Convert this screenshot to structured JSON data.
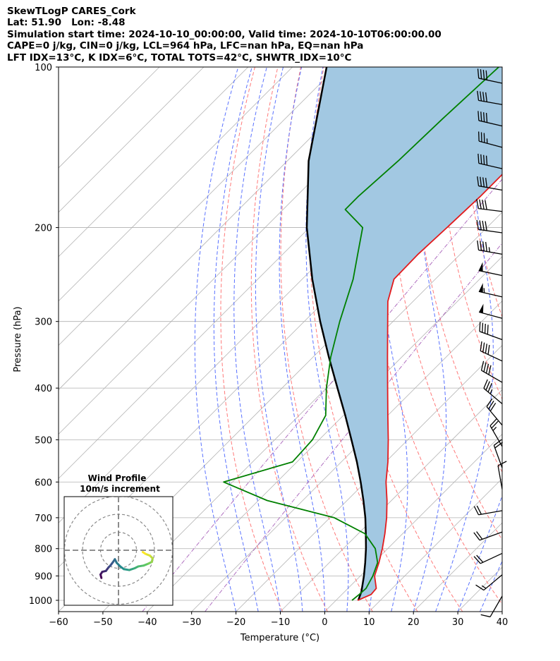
{
  "header": {
    "line1": "SkewTLogP CARES_Cork",
    "line2": "Lat: 51.90   Lon: -8.48",
    "line3": "Simulation start time: 2024-10-10_00:00:00, Valid time: 2024-10-10T06:00:00.00",
    "line4": "CAPE=0 j/kg, CIN=0 j/kg, LCL=964 hPa, LFC=nan hPa, EQ=nan hPa",
    "line5": "LFT IDX=13°C, K IDX=6°C, TOTAL TOTS=42°C, SHWTR_IDX=10°C"
  },
  "chart_data": {
    "type": "line",
    "xlabel": "Temperature (°C)",
    "ylabel": "Pressure (hPa)",
    "xlim": [
      -60,
      40
    ],
    "ylim": [
      1050,
      100
    ],
    "y_scale": "log",
    "skew": "45deg",
    "xticks": [
      "−60",
      "−50",
      "−40",
      "−30",
      "−20",
      "−10",
      "0",
      "10",
      "20",
      "30",
      "40"
    ],
    "yticks": [
      "100",
      "200",
      "300",
      "400",
      "500",
      "600",
      "700",
      "800",
      "900",
      "1000"
    ],
    "grid": true,
    "series": [
      {
        "role": "temperature",
        "color": "#e31a1c",
        "points": [
          [
            1000,
            4.9
          ],
          [
            975,
            6.6
          ],
          [
            950,
            6.4
          ],
          [
            900,
            3.2
          ],
          [
            850,
            1.2
          ],
          [
            800,
            -1.2
          ],
          [
            750,
            -4.0
          ],
          [
            700,
            -7.2
          ],
          [
            650,
            -11.0
          ],
          [
            600,
            -15.4
          ],
          [
            550,
            -19.5
          ],
          [
            500,
            -24.4
          ],
          [
            450,
            -30.0
          ],
          [
            400,
            -36.2
          ],
          [
            350,
            -43.2
          ],
          [
            300,
            -51.2
          ],
          [
            275,
            -55.7
          ],
          [
            250,
            -59.3
          ],
          [
            225,
            -59.5
          ],
          [
            200,
            -59.0
          ],
          [
            175,
            -58.5
          ],
          [
            150,
            -58.5
          ],
          [
            125,
            -58.5
          ],
          [
            100,
            -58.5
          ]
        ]
      },
      {
        "role": "dewpoint",
        "color": "#008000",
        "points": [
          [
            1000,
            3.6
          ],
          [
            975,
            3.9
          ],
          [
            950,
            4.1
          ],
          [
            900,
            2.8
          ],
          [
            850,
            0.9
          ],
          [
            800,
            -2.8
          ],
          [
            750,
            -8.5
          ],
          [
            700,
            -19.0
          ],
          [
            650,
            -38.0
          ],
          [
            600,
            -52.0
          ],
          [
            550,
            -41.0
          ],
          [
            500,
            -41.5
          ],
          [
            450,
            -44.0
          ],
          [
            400,
            -50.0
          ],
          [
            350,
            -56.0
          ],
          [
            300,
            -62.0
          ],
          [
            250,
            -68.5
          ],
          [
            225,
            -73.0
          ],
          [
            200,
            -78.0
          ],
          [
            185,
            -86.0
          ],
          [
            175,
            -86.0
          ],
          [
            150,
            -85.0
          ],
          [
            125,
            -84.5
          ],
          [
            100,
            -83.5
          ]
        ]
      },
      {
        "role": "parcel",
        "color": "#000000",
        "points": [
          [
            1000,
            5.0
          ],
          [
            964,
            3.8
          ],
          [
            900,
            0.8
          ],
          [
            850,
            -1.9
          ],
          [
            800,
            -4.9
          ],
          [
            750,
            -8.3
          ],
          [
            700,
            -12.0
          ],
          [
            650,
            -16.3
          ],
          [
            600,
            -21.1
          ],
          [
            550,
            -26.5
          ],
          [
            500,
            -32.7
          ],
          [
            450,
            -39.6
          ],
          [
            400,
            -47.5
          ],
          [
            350,
            -56.4
          ],
          [
            300,
            -66.4
          ],
          [
            250,
            -77.7
          ],
          [
            200,
            -90.6
          ],
          [
            150,
            -105.2
          ],
          [
            100,
            -122.3
          ]
        ]
      }
    ],
    "shading": {
      "between": [
        "temperature",
        "parcel"
      ],
      "color": "#a2c8e2"
    },
    "background_lines": {
      "isotherms": {
        "color": "#b4b4b4",
        "every_degC": 10
      },
      "dry_adiabats": {
        "color": "#ff7a7a",
        "theta_K": [
          260,
          270,
          280,
          290,
          300,
          310,
          320,
          330,
          340,
          350
        ]
      },
      "moist_adiabats": {
        "color": "#5a72ff",
        "start_degC": [
          -20,
          -15,
          -10,
          -5,
          0,
          5,
          10,
          15,
          20,
          25,
          30,
          35
        ]
      },
      "mixing_ratio": {
        "color": "#b070c0",
        "style": "dashdot",
        "g_per_kg": [
          0.1,
          0.4
        ]
      }
    },
    "wind_barbs": {
      "barb_color": "#000000",
      "speeds_kt": [
        38,
        40,
        38,
        36,
        38,
        40,
        42,
        40,
        45,
        50,
        55,
        48,
        42,
        40,
        38,
        35,
        28,
        25,
        20,
        12,
        18,
        22,
        22,
        16,
        10
      ],
      "dirs_deg": [
        282,
        280,
        283,
        285,
        283,
        280,
        277,
        278,
        280,
        282,
        283,
        285,
        290,
        295,
        300,
        310,
        320,
        330,
        340,
        350,
        260,
        250,
        245,
        230,
        210
      ]
    },
    "inset": {
      "title": "Wind Profile",
      "subtitle": "10m/s increment",
      "ring_radii_ms": [
        10,
        20,
        30
      ],
      "colormap": [
        "#440154",
        "#3b528b",
        "#21918c",
        "#5ec962",
        "#fde725"
      ],
      "hodograph_uv_ms": [
        [
          -9.5,
          -15.4
        ],
        [
          -10.0,
          -13.5
        ],
        [
          -9.0,
          -12.0
        ],
        [
          -7.0,
          -11.5
        ],
        [
          -5.5,
          -9.5
        ],
        [
          -4.5,
          -8.5
        ],
        [
          -3.0,
          -6.5
        ],
        [
          -2.0,
          -5.0
        ],
        [
          -1.0,
          -7.0
        ],
        [
          1.0,
          -9.0
        ],
        [
          3.0,
          -10.5
        ],
        [
          6.0,
          -11.0
        ],
        [
          9.0,
          -10.0
        ],
        [
          11.0,
          -9.0
        ],
        [
          14.0,
          -8.5
        ],
        [
          16.5,
          -7.5
        ],
        [
          18.5,
          -6.5
        ],
        [
          19.0,
          -4.5
        ],
        [
          17.5,
          -3.0
        ],
        [
          15.0,
          -2.0
        ],
        [
          13.5,
          -1.0
        ]
      ]
    }
  }
}
